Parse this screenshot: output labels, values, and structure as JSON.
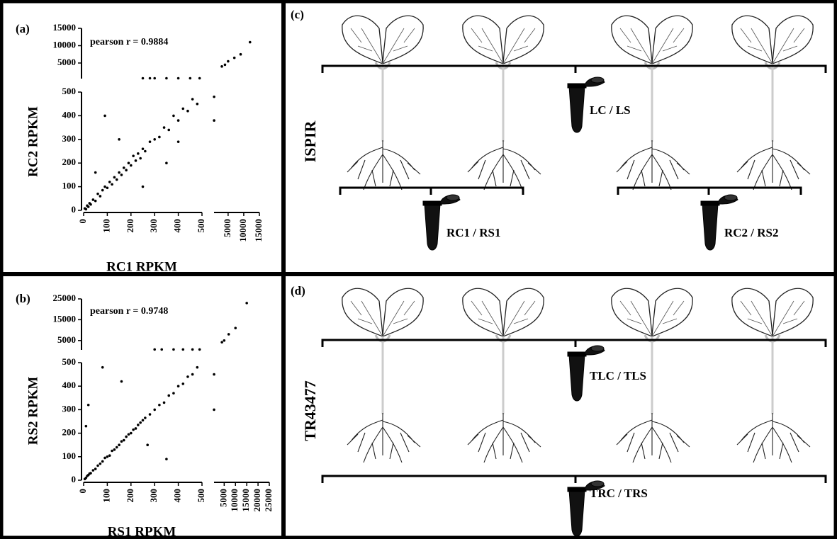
{
  "chart_data": [
    {
      "type": "scatter",
      "panel_label": "(a)",
      "annotation": "pearson r = 0.9884",
      "xlabel": "RC1 RPKM",
      "ylabel": "RC2 RPKM",
      "color": "#000000",
      "xlim": [
        [
          0,
          500
        ],
        [
          500,
          15000
        ]
      ],
      "xticks": [
        [
          0,
          100,
          200,
          300,
          400,
          500
        ],
        [
          5000,
          10000,
          15000
        ]
      ],
      "ylim": [
        [
          0,
          500
        ],
        [
          500,
          15000
        ]
      ],
      "yticks": [
        [
          0,
          100,
          200,
          300,
          400,
          500
        ],
        [
          5000,
          10000,
          15000
        ]
      ],
      "x": [
        5,
        10,
        15,
        20,
        25,
        30,
        40,
        50,
        60,
        70,
        80,
        90,
        100,
        110,
        120,
        130,
        140,
        150,
        160,
        170,
        180,
        190,
        200,
        210,
        220,
        230,
        240,
        250,
        260,
        280,
        300,
        320,
        340,
        360,
        380,
        400,
        420,
        440,
        460,
        480,
        50,
        90,
        150,
        250,
        350,
        400,
        250,
        280,
        300,
        350,
        400,
        450,
        490,
        520,
        520,
        3000,
        4000,
        5000,
        7000,
        9000,
        12000
      ],
      "values": [
        8,
        5,
        20,
        15,
        30,
        25,
        45,
        40,
        70,
        60,
        85,
        100,
        95,
        120,
        110,
        140,
        130,
        160,
        150,
        180,
        170,
        200,
        190,
        230,
        210,
        240,
        220,
        260,
        250,
        290,
        300,
        310,
        350,
        340,
        400,
        380,
        430,
        420,
        470,
        450,
        160,
        400,
        300,
        100,
        200,
        290,
        600,
        600,
        600,
        600,
        600,
        600,
        600,
        480,
        380,
        4000,
        4500,
        5500,
        6500,
        7500,
        11000
      ]
    },
    {
      "type": "scatter",
      "panel_label": "(b)",
      "annotation": "pearson r = 0.9748",
      "xlabel": "RS1 RPKM",
      "ylabel": "RS2 RPKM",
      "color": "#000000",
      "xlim": [
        [
          0,
          500
        ],
        [
          500,
          25000
        ]
      ],
      "xticks": [
        [
          0,
          100,
          200,
          300,
          400,
          500
        ],
        [
          5000,
          10000,
          15000,
          20000,
          25000
        ]
      ],
      "ylim": [
        [
          0,
          500
        ],
        [
          500,
          25000
        ]
      ],
      "yticks": [
        [
          0,
          100,
          200,
          300,
          400,
          500
        ],
        [
          5000,
          15000,
          25000
        ]
      ],
      "x": [
        5,
        10,
        15,
        20,
        25,
        30,
        40,
        50,
        60,
        70,
        80,
        90,
        100,
        110,
        120,
        130,
        140,
        150,
        160,
        170,
        180,
        190,
        200,
        210,
        220,
        230,
        240,
        250,
        260,
        280,
        300,
        320,
        340,
        360,
        380,
        400,
        420,
        440,
        460,
        480,
        10,
        80,
        160,
        270,
        350,
        20,
        300,
        330,
        380,
        420,
        460,
        490,
        510,
        510,
        4000,
        5000,
        7000,
        10000,
        15000
      ],
      "values": [
        5,
        10,
        18,
        22,
        28,
        30,
        42,
        48,
        62,
        70,
        80,
        95,
        100,
        105,
        125,
        130,
        140,
        150,
        165,
        170,
        185,
        195,
        200,
        215,
        220,
        235,
        245,
        255,
        265,
        280,
        300,
        320,
        330,
        360,
        370,
        400,
        410,
        440,
        450,
        480,
        230,
        480,
        420,
        150,
        90,
        320,
        700,
        700,
        700,
        700,
        700,
        700,
        450,
        300,
        4200,
        5000,
        8000,
        11000,
        23000
      ]
    }
  ],
  "diagrams": [
    {
      "label": "(c)",
      "side_label": "ISPIR",
      "tubes": [
        "LC / LS",
        "RC1 / RS1",
        "RC2 / RS2"
      ]
    },
    {
      "label": "(d)",
      "side_label": "TR43477",
      "tubes": [
        "TLC / TLS",
        "TRC / TRS"
      ]
    }
  ]
}
